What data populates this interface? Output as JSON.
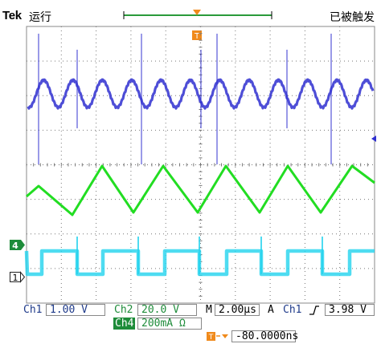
{
  "header": {
    "brand": "Tek",
    "run_state": "运行",
    "trigger_state": "已被触发"
  },
  "markers": {
    "ch4_marker": "4",
    "ch1_marker": "1",
    "trigger_marker": "T"
  },
  "readout": {
    "ch1_label": "Ch1",
    "ch1_scale": "1.00 V",
    "ch2_label": "Ch2",
    "ch2_scale": "20.0 V",
    "ch4_label": "Ch4",
    "ch4_scale": "200mA Ω",
    "timebase_label": "M",
    "timebase": "2.00µs",
    "trigger_mode": "A",
    "trigger_source": "Ch1",
    "trigger_slope_icon": "rising-edge-icon",
    "trigger_level": "3.98 V",
    "trigger_offset": "-80.0000ns"
  },
  "colors": {
    "ch1": "#2f2fd0",
    "ch2": "#22dd22",
    "ch4": "#22d3ee",
    "trigger": "#f08a1c",
    "grid": "#888888"
  }
}
